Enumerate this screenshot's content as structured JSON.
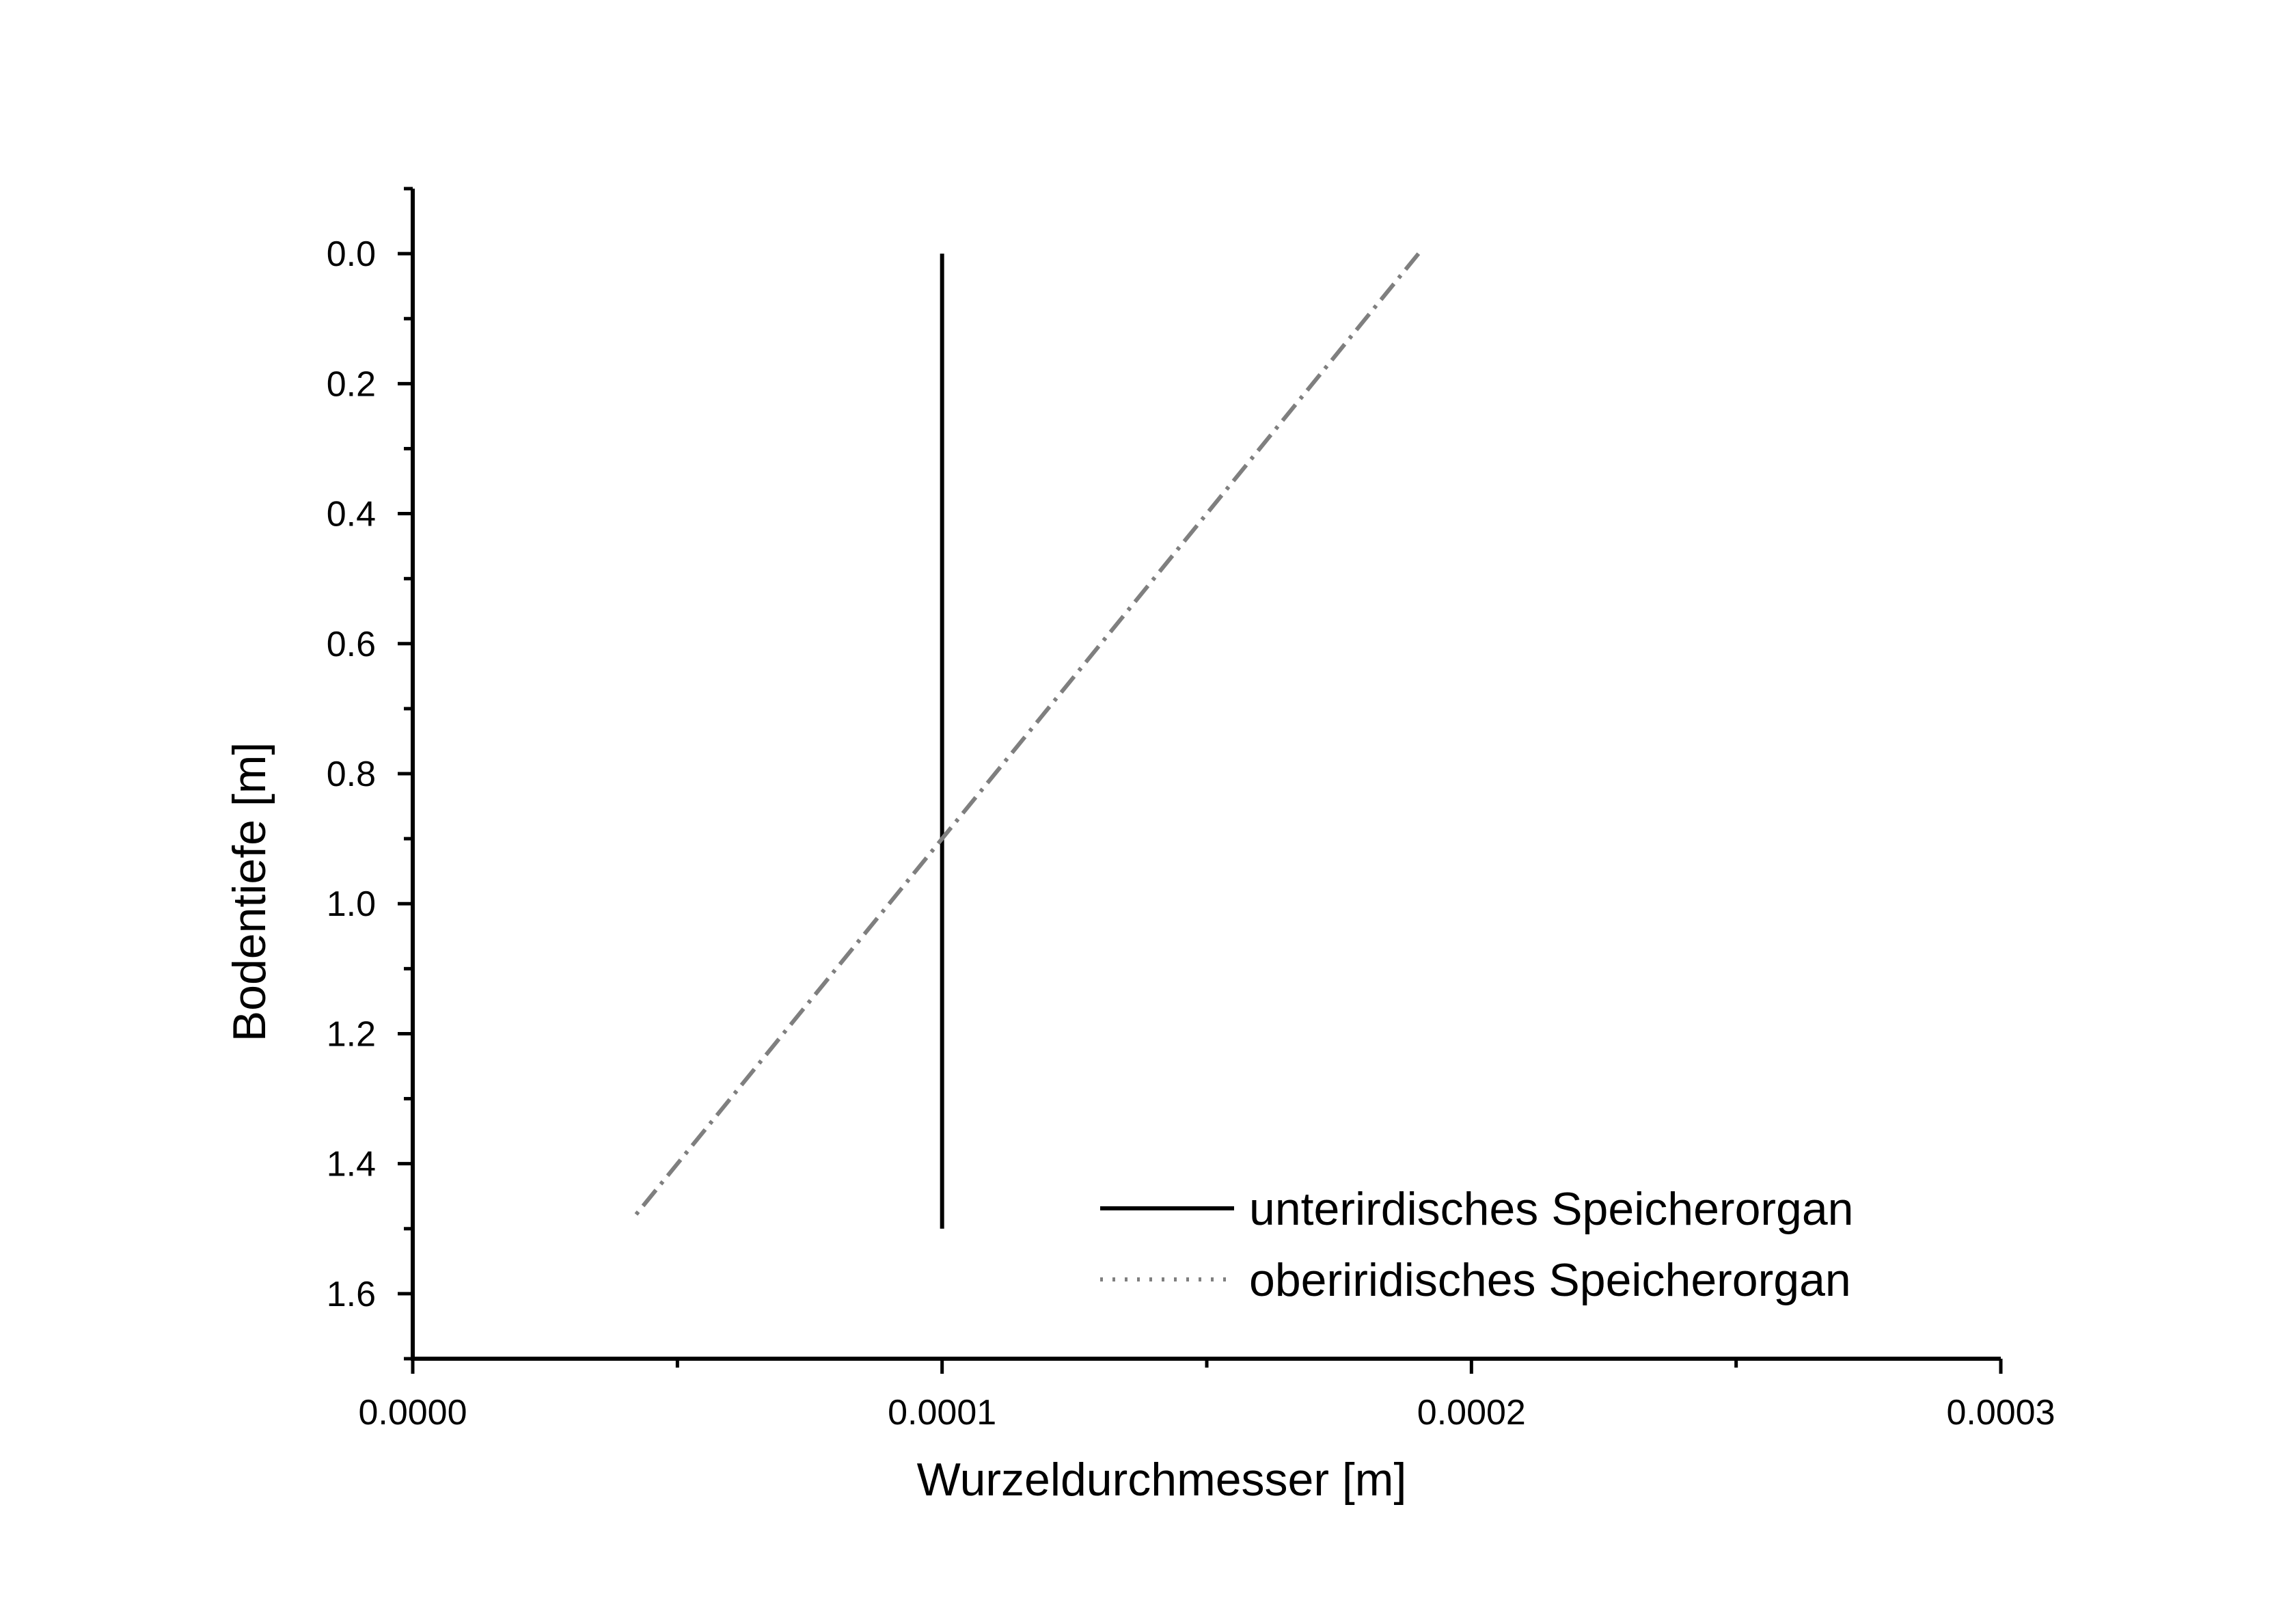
{
  "chart_data": {
    "type": "line",
    "title": "",
    "xlabel": "Wurzeldurchmesser [m]",
    "ylabel": "Bodentiefe [m]",
    "xlim": [
      0.0,
      0.0003
    ],
    "ylim": [
      1.7,
      -0.1
    ],
    "y_inverted": true,
    "x_ticks": [
      "0.0000",
      "0.0001",
      "0.0002",
      "0.0003"
    ],
    "x_tick_values": [
      0.0,
      0.0001,
      0.0002,
      0.0003
    ],
    "y_ticks": [
      "0.0",
      "0.2",
      "0.4",
      "0.6",
      "0.8",
      "1.0",
      "1.2",
      "1.4",
      "1.6"
    ],
    "y_tick_values": [
      0.0,
      0.2,
      0.4,
      0.6,
      0.8,
      1.0,
      1.2,
      1.4,
      1.6
    ],
    "grid": false,
    "legend_position": "bottom-right",
    "series": [
      {
        "name": "unterirdisches Speicherorgan",
        "color": "#000000",
        "line_style": "solid",
        "points": [
          [
            0.0001,
            0.0
          ],
          [
            0.0001,
            1.5
          ]
        ]
      },
      {
        "name": "oberiridisches Speicherorgan",
        "color": "#7f7f7f",
        "line_style": "dash-dot",
        "legend_line_style": "dotted",
        "points": [
          [
            0.00019,
            0.0
          ],
          [
            4.2e-05,
            1.48
          ]
        ]
      }
    ]
  }
}
